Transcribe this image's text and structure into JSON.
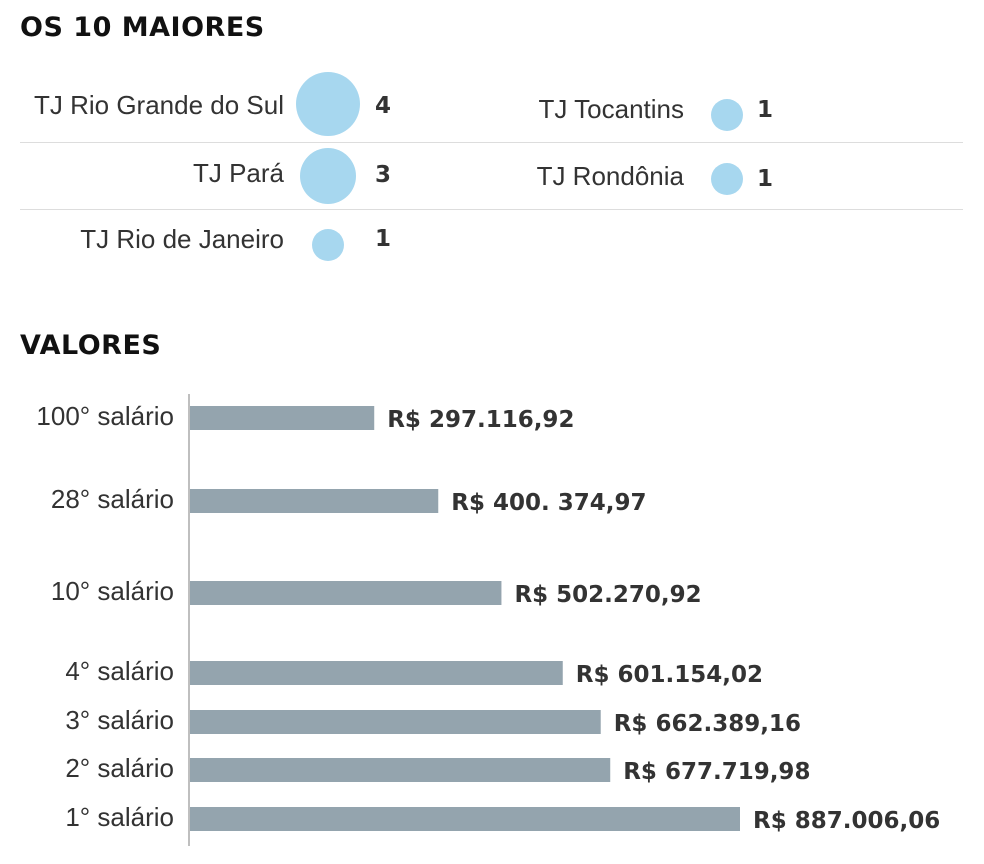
{
  "sections": {
    "top_title": "OS 10 MAIORES",
    "bottom_title": "VALORES"
  },
  "courts": [
    {
      "name": "TJ Rio Grande do Sul",
      "count": "4"
    },
    {
      "name": "TJ Pará",
      "count": "3"
    },
    {
      "name": "TJ Rio de Janeiro",
      "count": "1"
    },
    {
      "name": "TJ Tocantins",
      "count": "1"
    },
    {
      "name": "TJ Rondônia",
      "count": "1"
    }
  ],
  "colors": {
    "bubble": "#a7d7ef",
    "bar": "#94a4ae",
    "axis": "#aaaaaa",
    "divider": "#dddddd"
  },
  "chart_data": [
    {
      "type": "bubble",
      "title": "OS 10 MAIORES",
      "categories": [
        "TJ Rio Grande do Sul",
        "TJ Pará",
        "TJ Rio de Janeiro",
        "TJ Tocantins",
        "TJ Rondônia"
      ],
      "values": [
        4,
        3,
        1,
        1,
        1
      ]
    },
    {
      "type": "bar",
      "orientation": "horizontal",
      "title": "VALORES",
      "categories": [
        "100° salário",
        "28° salário",
        "10° salário",
        "4° salário",
        "3° salário",
        "2° salário",
        "1° salário"
      ],
      "values": [
        297116.92,
        400374.97,
        502270.92,
        601154.02,
        662389.16,
        677719.98,
        887006.06
      ],
      "value_labels": [
        "R$ 297.116,92",
        "R$ 400. 374,97",
        "R$ 502.270,92",
        "R$ 601.154,02",
        "R$ 662.389,16",
        "R$ 677.719,98",
        "R$ 887.006,06"
      ],
      "xlim": [
        0,
        887006.06
      ],
      "grid": false,
      "legend": "none"
    }
  ]
}
